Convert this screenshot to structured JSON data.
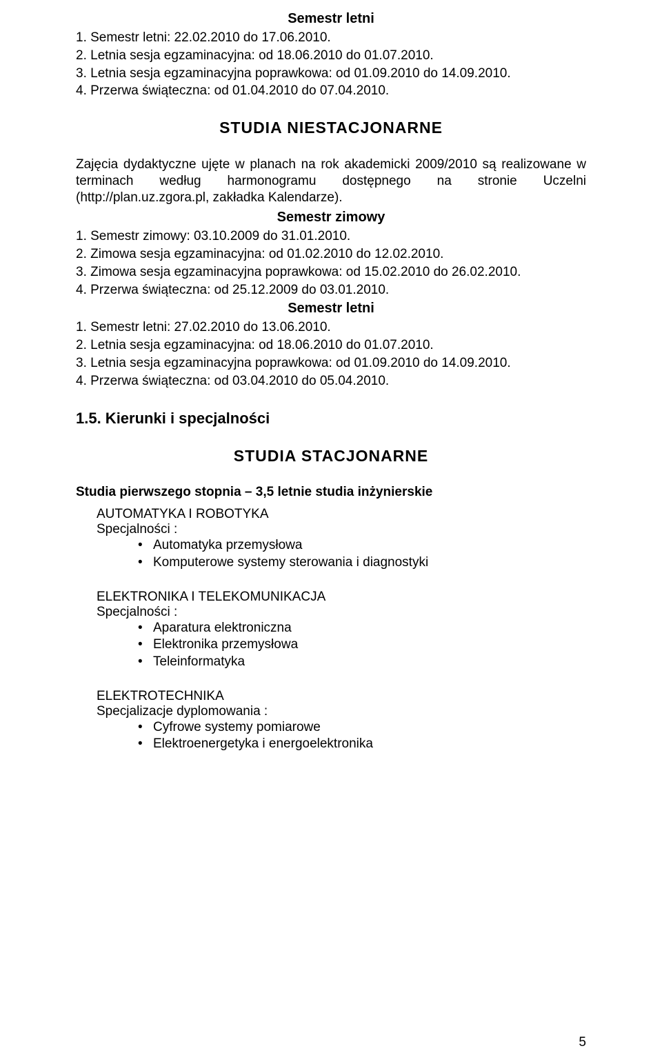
{
  "summer1": {
    "heading": "Semestr letni",
    "lines": [
      "1. Semestr letni: 22.02.2010 do 17.06.2010.",
      "2. Letnia sesja egzaminacyjna: od 18.06.2010 do 01.07.2010.",
      "3. Letnia sesja egzaminacyjna poprawkowa: od 01.09.2010 do 14.09.2010.",
      "4. Przerwa świąteczna: od 01.04.2010 do 07.04.2010."
    ]
  },
  "niestac": {
    "heading": "STUDIA NIESTACJONARNE",
    "intro": "Zajęcia dydaktyczne ujęte w planach na rok akademicki 2009/2010 są realizowane w terminach według harmonogramu dostępnego na stronie Uczelni (http://plan.uz.zgora.pl, zakładka Kalendarze)."
  },
  "winter": {
    "heading": "Semestr zimowy",
    "lines": [
      "1. Semestr zimowy: 03.10.2009 do 31.01.2010.",
      "2. Zimowa sesja egzaminacyjna: od 01.02.2010 do 12.02.2010.",
      "3. Zimowa sesja egzaminacyjna poprawkowa: od 15.02.2010 do 26.02.2010.",
      "4. Przerwa świąteczna: od 25.12.2009 do 03.01.2010."
    ]
  },
  "summer2": {
    "heading": "Semestr letni",
    "lines": [
      "1. Semestr letni: 27.02.2010 do 13.06.2010.",
      "2. Letnia sesja egzaminacyjna: od 18.06.2010 do 01.07.2010.",
      "3. Letnia sesja egzaminacyjna poprawkowa: od 01.09.2010 do 14.09.2010.",
      "4. Przerwa świąteczna: od 03.04.2010 do 05.04.2010."
    ]
  },
  "kierunki": {
    "heading": "1.5. Kierunki i specjalności"
  },
  "stac": {
    "heading": "STUDIA  STACJONARNE",
    "subhead": "Studia pierwszego stopnia – 3,5 letnie studia inżynierskie",
    "groups": [
      {
        "title": "AUTOMATYKA I ROBOTYKA",
        "spec_label": "Specjalności :",
        "items": [
          "Automatyka przemysłowa",
          "Komputerowe systemy sterowania i diagnostyki"
        ]
      },
      {
        "title": "ELEKTRONIKA I TELEKOMUNIKACJA",
        "spec_label": "Specjalności :",
        "items": [
          "Aparatura elektroniczna",
          "Elektronika przemysłowa",
          "Teleinformatyka"
        ]
      },
      {
        "title": "ELEKTROTECHNIKA",
        "spec_label": "Specjalizacje dyplomowania :",
        "items": [
          "Cyfrowe systemy pomiarowe",
          "Elektroenergetyka i energoelektronika"
        ]
      }
    ]
  },
  "page_number": "5"
}
